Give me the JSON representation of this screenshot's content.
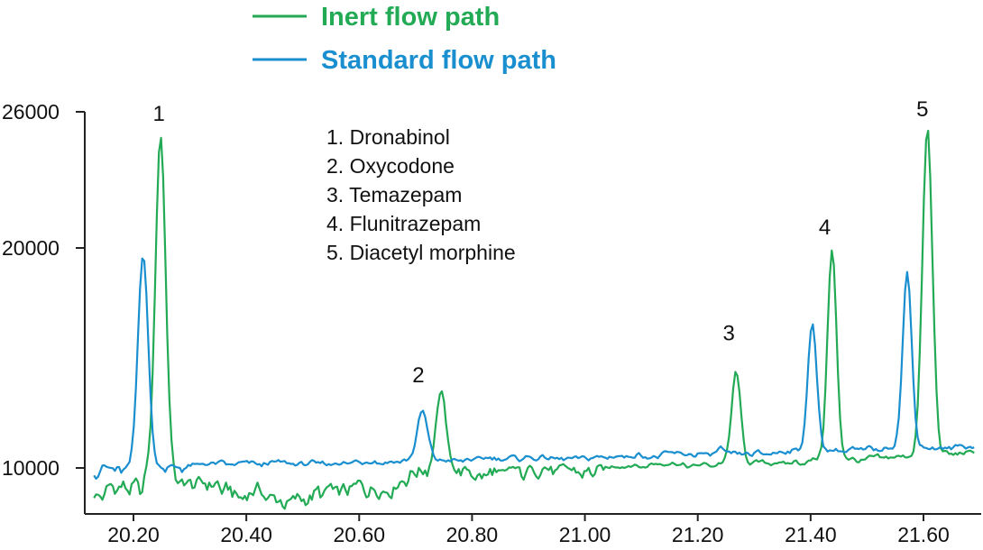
{
  "chart_data": {
    "type": "line",
    "xlabel": "",
    "ylabel": "",
    "xlim": [
      20.13,
      21.69
    ],
    "ylim": [
      9400,
      26000
    ],
    "x_ticks": [
      "20.20",
      "20.40",
      "20.60",
      "20.80",
      "21.00",
      "21.20",
      "21.40",
      "21.60"
    ],
    "x_tick_values": [
      20.2,
      20.4,
      20.6,
      20.8,
      21.0,
      21.2,
      21.4,
      21.6
    ],
    "y_ticks": [
      "26000",
      "20000",
      "10000"
    ],
    "y_tick_values": [
      26000,
      20000,
      10000
    ],
    "legend_position": "top-center",
    "series": [
      {
        "name": "Inert flow path",
        "color": "#22aa55",
        "baseline": [
          [
            20.13,
            9700
          ],
          [
            20.3,
            9750
          ],
          [
            20.5,
            9600
          ],
          [
            20.7,
            9900
          ],
          [
            20.9,
            9950
          ],
          [
            21.1,
            10100
          ],
          [
            21.3,
            10200
          ],
          [
            21.45,
            10350
          ],
          [
            21.55,
            10450
          ],
          [
            21.69,
            10700
          ]
        ],
        "peaks": [
          {
            "label": "1",
            "rt": 20.248,
            "apex": 25000,
            "width": 0.009
          },
          {
            "label": "2",
            "rt": 20.745,
            "apex": 13400,
            "width": 0.009
          },
          {
            "label": "3",
            "rt": 21.268,
            "apex": 14400,
            "width": 0.008
          },
          {
            "label": "4",
            "rt": 21.438,
            "apex": 19900,
            "width": 0.008
          },
          {
            "label": "5",
            "rt": 21.607,
            "apex": 25200,
            "width": 0.009
          }
        ]
      },
      {
        "name": "Standard flow path",
        "color": "#1a8fcf",
        "baseline": [
          [
            20.13,
            10000
          ],
          [
            20.3,
            10100
          ],
          [
            20.5,
            10200
          ],
          [
            20.7,
            10300
          ],
          [
            20.9,
            10450
          ],
          [
            21.1,
            10550
          ],
          [
            21.3,
            10650
          ],
          [
            21.45,
            10800
          ],
          [
            21.55,
            10900
          ],
          [
            21.69,
            10950
          ]
        ],
        "peaks": [
          {
            "label": "1",
            "rt": 20.217,
            "apex": 19700,
            "width": 0.009
          },
          {
            "label": "2",
            "rt": 20.712,
            "apex": 12500,
            "width": 0.009
          },
          {
            "label": "3",
            "rt": 21.24,
            "apex": 10900,
            "width": 0.005
          },
          {
            "label": "4",
            "rt": 21.403,
            "apex": 16500,
            "width": 0.008
          },
          {
            "label": "5",
            "rt": 21.571,
            "apex": 18800,
            "width": 0.008
          }
        ]
      }
    ],
    "peak_labels": [
      {
        "label": "1",
        "x": 20.245,
        "y": 25600
      },
      {
        "label": "2",
        "x": 20.705,
        "y": 13900
      },
      {
        "label": "3",
        "x": 21.255,
        "y": 15800
      },
      {
        "label": "4",
        "x": 21.425,
        "y": 20600
      },
      {
        "label": "5",
        "x": 21.598,
        "y": 25800
      }
    ],
    "annotation_lines": [
      "1. Dronabinol",
      "2. Oxycodone",
      "3. Temazepam",
      "4. Flunitrazepam",
      "5. Diacetyl morphine"
    ]
  }
}
